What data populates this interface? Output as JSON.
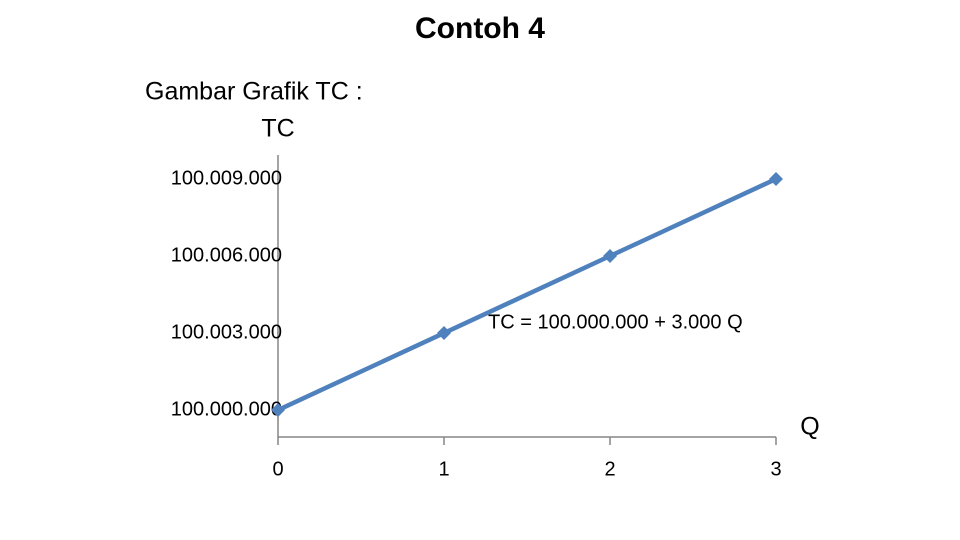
{
  "chart_data": {
    "type": "line",
    "title": "Contoh 4",
    "subtitle": "Gambar Grafik TC :",
    "y_label": "TC",
    "x_label": "Q",
    "annotation": "TC = 100.000.000 + 3.000 Q",
    "x": [
      0,
      1,
      2,
      3
    ],
    "values": [
      100000000,
      100003000,
      100006000,
      100009000
    ],
    "color": "#4f81bd",
    "xlim": [
      0,
      3
    ],
    "xticks": [
      0,
      1,
      2,
      3
    ],
    "ylim": [
      99998950,
      100009935
    ],
    "yticks": [
      {
        "value": 100000000,
        "label": "100.000.000"
      },
      {
        "value": 100003000,
        "label": "100.003.000"
      },
      {
        "value": 100006000,
        "label": "100.006.000"
      },
      {
        "value": 100009000,
        "label": "100.009.000"
      }
    ]
  }
}
